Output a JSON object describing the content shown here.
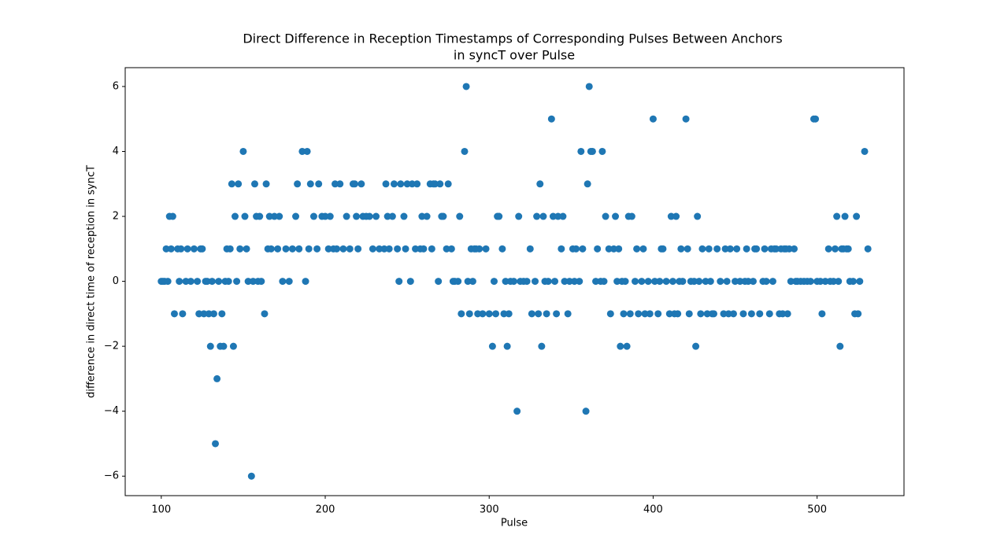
{
  "chart_data": {
    "type": "scatter",
    "title": [
      "Direct Difference in Reception Timestamps of Corresponding Pulses Between Anchors",
      "in syncT over Pulse"
    ],
    "xlabel": "Pulse",
    "ylabel": "difference in direct time of reception in syncT",
    "color": "#1f77b4",
    "grid": false,
    "xlim": [
      78,
      553
    ],
    "ylim": [
      -6.6,
      6.58
    ],
    "xticks": [
      100,
      200,
      300,
      400,
      500
    ],
    "yticks": [
      {
        "value": -6,
        "label": "−6"
      },
      {
        "value": -4,
        "label": "−4"
      },
      {
        "value": -2,
        "label": "−2"
      },
      0,
      2,
      4,
      6
    ],
    "x": [
      100,
      101,
      102,
      103,
      104,
      105,
      106,
      107,
      108,
      110,
      111,
      112,
      113,
      115,
      116,
      118,
      120,
      122,
      123,
      124,
      125,
      126,
      127,
      128,
      129,
      130,
      131,
      132,
      133,
      134,
      135,
      136,
      137,
      138,
      139,
      140,
      141,
      142,
      143,
      144,
      145,
      146,
      147,
      148,
      150,
      151,
      152,
      153,
      155,
      156,
      157,
      158,
      159,
      160,
      161,
      163,
      164,
      165,
      166,
      167,
      169,
      171,
      172,
      174,
      176,
      178,
      180,
      182,
      183,
      184,
      186,
      188,
      189,
      190,
      191,
      193,
      195,
      196,
      198,
      200,
      202,
      203,
      205,
      206,
      207,
      209,
      211,
      213,
      215,
      217,
      218,
      219,
      220,
      222,
      223,
      225,
      227,
      229,
      231,
      233,
      236,
      237,
      238,
      239,
      241,
      242,
      244,
      245,
      246,
      248,
      249,
      250,
      252,
      253,
      255,
      256,
      258,
      259,
      260,
      262,
      264,
      265,
      266,
      267,
      269,
      270,
      271,
      272,
      274,
      275,
      277,
      278,
      279,
      281,
      282,
      283,
      285,
      286,
      287,
      288,
      289,
      290,
      291,
      292,
      293,
      294,
      296,
      298,
      300,
      302,
      303,
      304,
      305,
      306,
      308,
      309,
      310,
      311,
      312,
      313,
      315,
      317,
      318,
      319,
      321,
      323,
      325,
      326,
      328,
      329,
      330,
      331,
      332,
      333,
      334,
      335,
      336,
      338,
      339,
      340,
      341,
      342,
      344,
      345,
      346,
      348,
      349,
      351,
      352,
      353,
      355,
      356,
      357,
      359,
      360,
      361,
      362,
      363,
      365,
      366,
      368,
      369,
      370,
      371,
      373,
      374,
      376,
      377,
      378,
      379,
      380,
      381,
      382,
      383,
      384,
      385,
      386,
      387,
      389,
      390,
      391,
      393,
      394,
      395,
      397,
      398,
      400,
      401,
      403,
      404,
      405,
      406,
      408,
      410,
      411,
      412,
      413,
      414,
      415,
      416,
      417,
      418,
      420,
      421,
      422,
      423,
      425,
      426,
      427,
      428,
      429,
      430,
      432,
      433,
      434,
      435,
      436,
      437,
      439,
      441,
      443,
      444,
      445,
      446,
      447,
      449,
      450,
      451,
      453,
      455,
      456,
      457,
      458,
      460,
      461,
      462,
      463,
      465,
      467,
      468,
      469,
      471,
      472,
      473,
      474,
      475,
      477,
      478,
      479,
      480,
      481,
      482,
      483,
      484,
      486,
      487,
      488,
      490,
      492,
      494,
      496,
      498,
      499,
      500,
      502,
      503,
      505,
      507,
      508,
      510,
      511,
      512,
      513,
      514,
      515,
      516,
      517,
      518,
      519,
      520,
      522,
      523,
      524,
      525,
      526,
      529,
      531
    ],
    "values": [
      0,
      0,
      0,
      1,
      0,
      2,
      1,
      2,
      -1,
      1,
      0,
      1,
      -1,
      0,
      1,
      0,
      1,
      0,
      -1,
      1,
      1,
      -1,
      0,
      0,
      -1,
      -2,
      0,
      -1,
      -5,
      -3,
      0,
      -2,
      -1,
      -2,
      0,
      1,
      0,
      1,
      3,
      -2,
      2,
      0,
      3,
      1,
      4,
      2,
      1,
      0,
      -6,
      0,
      3,
      2,
      0,
      2,
      0,
      -1,
      3,
      1,
      2,
      1,
      2,
      1,
      2,
      0,
      1,
      0,
      1,
      2,
      3,
      1,
      4,
      0,
      4,
      1,
      3,
      2,
      1,
      3,
      2,
      2,
      1,
      2,
      1,
      3,
      1,
      3,
      1,
      2,
      1,
      3,
      3,
      2,
      1,
      3,
      2,
      2,
      2,
      1,
      2,
      1,
      1,
      3,
      2,
      1,
      2,
      3,
      1,
      0,
      3,
      2,
      1,
      3,
      0,
      3,
      1,
      3,
      1,
      2,
      1,
      2,
      3,
      1,
      3,
      3,
      0,
      3,
      2,
      2,
      1,
      3,
      1,
      0,
      0,
      0,
      2,
      -1,
      4,
      6,
      0,
      -1,
      1,
      0,
      1,
      1,
      -1,
      1,
      -1,
      1,
      -1,
      -2,
      0,
      -1,
      2,
      2,
      1,
      -1,
      0,
      -2,
      -1,
      0,
      0,
      -4,
      2,
      0,
      0,
      0,
      1,
      -1,
      0,
      2,
      -1,
      3,
      -2,
      2,
      0,
      -1,
      0,
      5,
      2,
      0,
      -1,
      2,
      1,
      2,
      0,
      -1,
      0,
      1,
      0,
      1,
      0,
      4,
      1,
      -4,
      3,
      6,
      4,
      4,
      0,
      1,
      0,
      4,
      0,
      2,
      1,
      -1,
      1,
      2,
      0,
      1,
      -2,
      0,
      -1,
      0,
      -2,
      2,
      -1,
      2,
      0,
      1,
      -1,
      0,
      1,
      -1,
      0,
      -1,
      5,
      0,
      -1,
      0,
      1,
      1,
      0,
      -1,
      2,
      0,
      -1,
      2,
      -1,
      0,
      1,
      0,
      5,
      1,
      -1,
      0,
      0,
      -2,
      2,
      0,
      -1,
      1,
      0,
      -1,
      1,
      0,
      -1,
      -1,
      1,
      0,
      -1,
      1,
      0,
      -1,
      1,
      -1,
      0,
      1,
      0,
      -1,
      0,
      1,
      0,
      -1,
      0,
      1,
      1,
      -1,
      0,
      1,
      0,
      -1,
      1,
      0,
      1,
      1,
      -1,
      1,
      -1,
      1,
      1,
      -1,
      1,
      0,
      1,
      0,
      0,
      0,
      0,
      0,
      0,
      5,
      5,
      0,
      0,
      -1,
      0,
      1,
      0,
      0,
      1,
      2,
      0,
      -2,
      1,
      1,
      2,
      1,
      1,
      0,
      0,
      -1,
      2,
      -1,
      0,
      4,
      1
    ]
  }
}
